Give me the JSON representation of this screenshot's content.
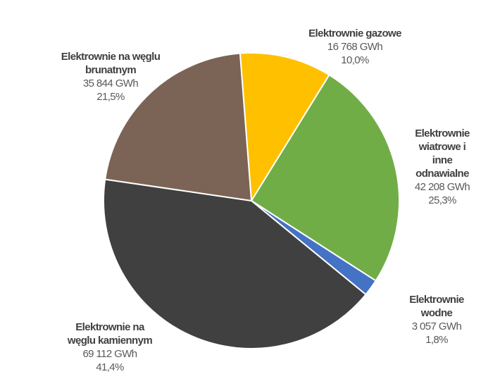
{
  "chart_data": {
    "type": "pie",
    "start_angle_deg": -4.4,
    "direction": "clockwise",
    "slices": [
      {
        "name": "Elektrownie gazowe",
        "label_lines": "Elektrownie gazowe",
        "value": 16768,
        "value_label": "16 768 GWh",
        "percent": 10.0,
        "percent_label": "10,0%",
        "color": "#FFC000"
      },
      {
        "name": "Elektrownie wiatrowe i inne odnawialne",
        "label_lines": "Elektrownie\nwiatrowe i inne\nodnawialne",
        "value": 42208,
        "value_label": "42 208 GWh",
        "percent": 25.3,
        "percent_label": "25,3%",
        "color": "#70AD47"
      },
      {
        "name": "Elektrownie wodne",
        "label_lines": "Elektrownie wodne",
        "value": 3057,
        "value_label": "3 057 GWh",
        "percent": 1.8,
        "percent_label": "1,8%",
        "color": "#4472C4"
      },
      {
        "name": "Elektrownie na węglu kamiennym",
        "label_lines": "Elektrownie na\nwęglu kamiennym",
        "value": 69112,
        "value_label": "69 112 GWh",
        "percent": 41.4,
        "percent_label": "41,4%",
        "color": "#404040"
      },
      {
        "name": "Elektrownie na węglu brunatnym",
        "label_lines": "Elektrownie na węglu\nbrunatnym",
        "value": 35844,
        "value_label": "35 844 GWh",
        "percent": 21.5,
        "percent_label": "21,5%",
        "color": "#7B6356"
      }
    ]
  }
}
